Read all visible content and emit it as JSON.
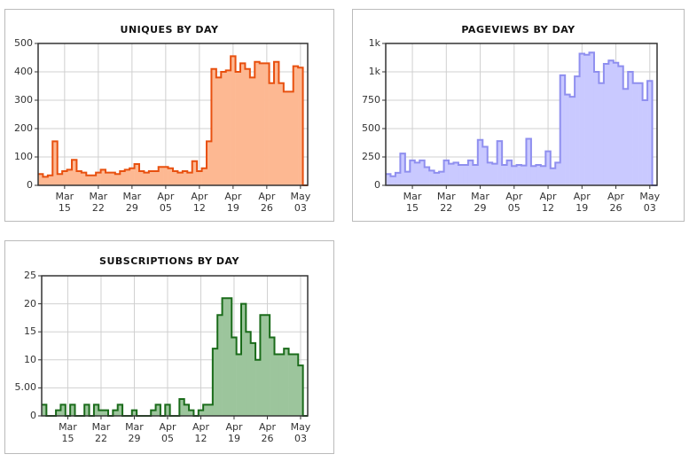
{
  "chart_data": [
    {
      "type": "step-area",
      "title": "UNIQUES BY DAY",
      "color": "#e8500f",
      "fill": "#fdb892",
      "grid": true,
      "categories": [
        null,
        null,
        null,
        null,
        null,
        "Mar 15",
        null,
        null,
        null,
        null,
        null,
        null,
        "Mar 22",
        null,
        null,
        null,
        null,
        null,
        null,
        "Mar 29",
        null,
        null,
        null,
        null,
        null,
        null,
        "Apr 05",
        null,
        null,
        null,
        null,
        null,
        null,
        "Apr 12",
        null,
        null,
        null,
        null,
        null,
        null,
        "Apr 19",
        null,
        null,
        null,
        null,
        null,
        null,
        "Apr 26",
        null,
        null,
        null,
        null,
        null,
        null,
        "May 03",
        null
      ],
      "values": [
        40,
        30,
        35,
        155,
        40,
        50,
        55,
        90,
        50,
        45,
        35,
        35,
        45,
        55,
        45,
        45,
        40,
        50,
        55,
        60,
        75,
        50,
        45,
        50,
        50,
        65,
        65,
        60,
        50,
        45,
        50,
        45,
        85,
        50,
        60,
        155,
        410,
        380,
        400,
        405,
        455,
        400,
        430,
        410,
        380,
        435,
        430,
        430,
        360,
        435,
        360,
        330,
        330,
        420,
        415,
        0
      ],
      "ylim": [
        0,
        500
      ],
      "yticks": [
        0,
        100,
        200,
        300,
        400,
        500
      ]
    },
    {
      "type": "step-area",
      "title": "PAGEVIEWS BY DAY",
      "color": "#8f8fef",
      "fill": "#c9c9ff",
      "grid": true,
      "categories": [
        null,
        null,
        null,
        null,
        null,
        "Mar 15",
        null,
        null,
        null,
        null,
        null,
        null,
        "Mar 22",
        null,
        null,
        null,
        null,
        null,
        null,
        "Mar 29",
        null,
        null,
        null,
        null,
        null,
        null,
        "Apr 05",
        null,
        null,
        null,
        null,
        null,
        null,
        "Apr 12",
        null,
        null,
        null,
        null,
        null,
        null,
        "Apr 19",
        null,
        null,
        null,
        null,
        null,
        null,
        "Apr 26",
        null,
        null,
        null,
        null,
        null,
        null,
        "May 03",
        null
      ],
      "values": [
        100,
        80,
        110,
        280,
        120,
        220,
        200,
        220,
        160,
        130,
        110,
        120,
        220,
        190,
        200,
        180,
        180,
        220,
        180,
        400,
        340,
        200,
        190,
        390,
        180,
        220,
        170,
        180,
        175,
        410,
        170,
        180,
        170,
        300,
        150,
        200,
        970,
        800,
        780,
        960,
        1160,
        1150,
        1170,
        1000,
        900,
        1070,
        1100,
        1080,
        1050,
        850,
        1000,
        900,
        900,
        750,
        920,
        0
      ],
      "ylim": [
        0,
        1250
      ],
      "yticks": [
        0,
        250,
        500,
        750,
        {
          "value": 1000,
          "label": "1k"
        },
        {
          "value": 1250,
          "label": "1k"
        }
      ]
    },
    {
      "type": "step-area",
      "title": "SUBSCRIPTIONS BY DAY",
      "color": "#1a6b1a",
      "fill": "#9cc59c",
      "grid": true,
      "categories": [
        null,
        null,
        null,
        null,
        null,
        "Mar 15",
        null,
        null,
        null,
        null,
        null,
        null,
        "Mar 22",
        null,
        null,
        null,
        null,
        null,
        null,
        "Mar 29",
        null,
        null,
        null,
        null,
        null,
        null,
        "Apr 05",
        null,
        null,
        null,
        null,
        null,
        null,
        "Apr 12",
        null,
        null,
        null,
        null,
        null,
        null,
        "Apr 19",
        null,
        null,
        null,
        null,
        null,
        null,
        "Apr 26",
        null,
        null,
        null,
        null,
        null,
        null,
        "May 03",
        null
      ],
      "values": [
        2,
        0,
        0,
        1,
        2,
        0,
        2,
        0,
        0,
        2,
        0,
        2,
        1,
        1,
        0,
        1,
        2,
        0,
        0,
        1,
        0,
        0,
        0,
        1,
        2,
        0,
        2,
        0,
        0,
        3,
        2,
        1,
        0,
        1,
        2,
        2,
        12,
        18,
        21,
        21,
        14,
        11,
        20,
        15,
        13,
        10,
        18,
        18,
        14,
        11,
        11,
        12,
        11,
        11,
        9,
        0
      ],
      "ylim": [
        0,
        25
      ],
      "yticks": [
        0,
        {
          "value": 5,
          "label": "5.00"
        },
        10,
        15,
        20,
        25
      ]
    }
  ]
}
